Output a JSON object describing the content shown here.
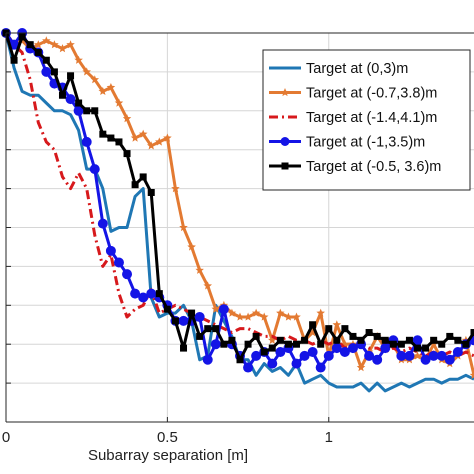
{
  "chart_data": {
    "type": "line",
    "title": "",
    "xlabel": "Subarray separation [m]",
    "ylabel": "",
    "xlim": [
      0,
      1.45
    ],
    "ylim": [
      0,
      1
    ],
    "grid": true,
    "legend_position": "top-right",
    "x_ticks": [
      0,
      0.5,
      1
    ],
    "x_tick_labels": [
      "0",
      "0.5",
      "1"
    ],
    "y_ticks": [
      0.1,
      0.2,
      0.3,
      0.4,
      0.5,
      0.6,
      0.7,
      0.8,
      0.9,
      1.0
    ],
    "series": [
      {
        "name": "Target at (0,3)m",
        "color": "#1f77b4",
        "linestyle": "solid",
        "marker": "none",
        "x": [
          0,
          0.025,
          0.05,
          0.075,
          0.1,
          0.125,
          0.15,
          0.175,
          0.2,
          0.225,
          0.25,
          0.275,
          0.3,
          0.325,
          0.35,
          0.375,
          0.4,
          0.425,
          0.45,
          0.475,
          0.5,
          0.525,
          0.55,
          0.575,
          0.6,
          0.625,
          0.65,
          0.675,
          0.7,
          0.725,
          0.75,
          0.775,
          0.8,
          0.825,
          0.85,
          0.875,
          0.9,
          0.925,
          0.95,
          0.975,
          1.0,
          1.025,
          1.05,
          1.075,
          1.1,
          1.125,
          1.15,
          1.175,
          1.2,
          1.225,
          1.25,
          1.275,
          1.3,
          1.325,
          1.35,
          1.375,
          1.4,
          1.425,
          1.45
        ],
        "y": [
          1.0,
          0.91,
          0.85,
          0.84,
          0.84,
          0.82,
          0.8,
          0.8,
          0.79,
          0.75,
          0.65,
          0.65,
          0.6,
          0.49,
          0.5,
          0.5,
          0.58,
          0.6,
          0.32,
          0.27,
          0.28,
          0.28,
          0.3,
          0.26,
          0.16,
          0.17,
          0.3,
          0.26,
          0.22,
          0.16,
          0.16,
          0.12,
          0.15,
          0.13,
          0.14,
          0.12,
          0.15,
          0.1,
          0.11,
          0.12,
          0.1,
          0.09,
          0.09,
          0.09,
          0.1,
          0.08,
          0.1,
          0.08,
          0.09,
          0.1,
          0.09,
          0.1,
          0.11,
          0.11,
          0.1,
          0.11,
          0.11,
          0.12,
          0.11
        ]
      },
      {
        "name": "Target at (-0.7,3.8)m",
        "color": "#e37a32",
        "linestyle": "solid",
        "marker": "star",
        "x": [
          0,
          0.025,
          0.05,
          0.075,
          0.1,
          0.125,
          0.15,
          0.175,
          0.2,
          0.225,
          0.25,
          0.275,
          0.3,
          0.325,
          0.35,
          0.375,
          0.4,
          0.425,
          0.45,
          0.475,
          0.5,
          0.525,
          0.55,
          0.575,
          0.6,
          0.625,
          0.65,
          0.675,
          0.7,
          0.725,
          0.75,
          0.775,
          0.8,
          0.825,
          0.85,
          0.875,
          0.9,
          0.925,
          0.95,
          0.975,
          1.0,
          1.025,
          1.05,
          1.075,
          1.1,
          1.125,
          1.15,
          1.175,
          1.2,
          1.225,
          1.25,
          1.275,
          1.3,
          1.325,
          1.35,
          1.375,
          1.4,
          1.425,
          1.45
        ],
        "y": [
          1.0,
          0.97,
          0.98,
          0.96,
          0.97,
          0.98,
          0.97,
          0.96,
          0.97,
          0.93,
          0.9,
          0.88,
          0.85,
          0.86,
          0.82,
          0.78,
          0.73,
          0.74,
          0.71,
          0.72,
          0.73,
          0.6,
          0.5,
          0.45,
          0.39,
          0.35,
          0.29,
          0.3,
          0.28,
          0.27,
          0.27,
          0.28,
          0.27,
          0.21,
          0.28,
          0.27,
          0.27,
          0.21,
          0.23,
          0.28,
          0.17,
          0.25,
          0.2,
          0.2,
          0.14,
          0.18,
          0.22,
          0.19,
          0.2,
          0.16,
          0.16,
          0.17,
          0.16,
          0.2,
          0.16,
          0.15,
          0.17,
          0.21,
          0.12
        ]
      },
      {
        "name": "Target at (-1.4,4.1)m",
        "color": "#d7191c",
        "linestyle": "dashdot",
        "marker": "none",
        "x": [
          0,
          0.025,
          0.05,
          0.075,
          0.1,
          0.125,
          0.15,
          0.175,
          0.2,
          0.225,
          0.25,
          0.275,
          0.3,
          0.325,
          0.35,
          0.375,
          0.4,
          0.425,
          0.45,
          0.475,
          0.5,
          0.525,
          0.55,
          0.575,
          0.6,
          0.625,
          0.65,
          0.675,
          0.7,
          0.725,
          0.75,
          0.775,
          0.8,
          0.825,
          0.85,
          0.875,
          0.9,
          0.925,
          0.95,
          0.975,
          1.0,
          1.025,
          1.05,
          1.075,
          1.1,
          1.125,
          1.15,
          1.175,
          1.2,
          1.225,
          1.25,
          1.275,
          1.3,
          1.325,
          1.35,
          1.375,
          1.4,
          1.425,
          1.45
        ],
        "y": [
          1.0,
          0.97,
          0.95,
          0.88,
          0.77,
          0.72,
          0.7,
          0.63,
          0.6,
          0.64,
          0.6,
          0.48,
          0.4,
          0.43,
          0.33,
          0.27,
          0.29,
          0.3,
          0.34,
          0.28,
          0.29,
          0.3,
          0.29,
          0.28,
          0.27,
          0.26,
          0.25,
          0.24,
          0.23,
          0.24,
          0.24,
          0.23,
          0.22,
          0.22,
          0.21,
          0.22,
          0.21,
          0.21,
          0.2,
          0.21,
          0.2,
          0.21,
          0.19,
          0.2,
          0.2,
          0.19,
          0.19,
          0.18,
          0.19,
          0.18,
          0.19,
          0.18,
          0.17,
          0.18,
          0.17,
          0.18,
          0.17,
          0.18,
          0.17
        ]
      },
      {
        "name": "Target at (-1,3.5)m",
        "color": "#1414e6",
        "linestyle": "solid",
        "marker": "circle",
        "x": [
          0,
          0.025,
          0.05,
          0.075,
          0.1,
          0.125,
          0.15,
          0.175,
          0.2,
          0.225,
          0.25,
          0.275,
          0.3,
          0.325,
          0.35,
          0.375,
          0.4,
          0.425,
          0.45,
          0.475,
          0.5,
          0.525,
          0.55,
          0.575,
          0.6,
          0.625,
          0.65,
          0.675,
          0.7,
          0.725,
          0.75,
          0.775,
          0.8,
          0.825,
          0.85,
          0.875,
          0.9,
          0.925,
          0.95,
          0.975,
          1.0,
          1.025,
          1.05,
          1.075,
          1.1,
          1.125,
          1.15,
          1.175,
          1.2,
          1.225,
          1.25,
          1.275,
          1.3,
          1.325,
          1.35,
          1.375,
          1.4,
          1.425,
          1.45
        ],
        "y": [
          1.0,
          0.97,
          1.0,
          0.96,
          0.95,
          0.9,
          0.87,
          0.86,
          0.83,
          0.8,
          0.72,
          0.65,
          0.51,
          0.44,
          0.41,
          0.38,
          0.33,
          0.32,
          0.33,
          0.32,
          0.3,
          0.26,
          0.26,
          0.26,
          0.27,
          0.16,
          0.2,
          0.29,
          0.2,
          0.17,
          0.14,
          0.17,
          0.18,
          0.15,
          0.18,
          0.19,
          0.15,
          0.17,
          0.18,
          0.14,
          0.17,
          0.19,
          0.18,
          0.19,
          0.2,
          0.17,
          0.16,
          0.19,
          0.21,
          0.17,
          0.17,
          0.21,
          0.16,
          0.17,
          0.17,
          0.16,
          0.18,
          0.2,
          0.21
        ]
      },
      {
        "name": "Target at (-0.5, 3.6)m",
        "color": "#000000",
        "linestyle": "solid",
        "marker": "square",
        "x": [
          0,
          0.025,
          0.05,
          0.075,
          0.1,
          0.125,
          0.15,
          0.175,
          0.2,
          0.225,
          0.25,
          0.275,
          0.3,
          0.325,
          0.35,
          0.375,
          0.4,
          0.425,
          0.45,
          0.475,
          0.5,
          0.525,
          0.55,
          0.575,
          0.6,
          0.625,
          0.65,
          0.675,
          0.7,
          0.725,
          0.75,
          0.775,
          0.8,
          0.825,
          0.85,
          0.875,
          0.9,
          0.925,
          0.95,
          0.975,
          1.0,
          1.025,
          1.05,
          1.075,
          1.1,
          1.125,
          1.15,
          1.175,
          1.2,
          1.225,
          1.25,
          1.275,
          1.3,
          1.325,
          1.35,
          1.375,
          1.4,
          1.425,
          1.45
        ],
        "y": [
          1.0,
          0.93,
          0.99,
          0.97,
          0.95,
          0.93,
          0.9,
          0.84,
          0.89,
          0.82,
          0.8,
          0.8,
          0.74,
          0.73,
          0.72,
          0.69,
          0.61,
          0.63,
          0.59,
          0.33,
          0.29,
          0.26,
          0.19,
          0.28,
          0.22,
          0.24,
          0.24,
          0.2,
          0.21,
          0.16,
          0.2,
          0.22,
          0.18,
          0.19,
          0.21,
          0.2,
          0.2,
          0.21,
          0.25,
          0.2,
          0.24,
          0.21,
          0.24,
          0.22,
          0.21,
          0.23,
          0.22,
          0.21,
          0.2,
          0.2,
          0.21,
          0.19,
          0.19,
          0.21,
          0.2,
          0.22,
          0.21,
          0.2,
          0.23
        ]
      }
    ]
  }
}
